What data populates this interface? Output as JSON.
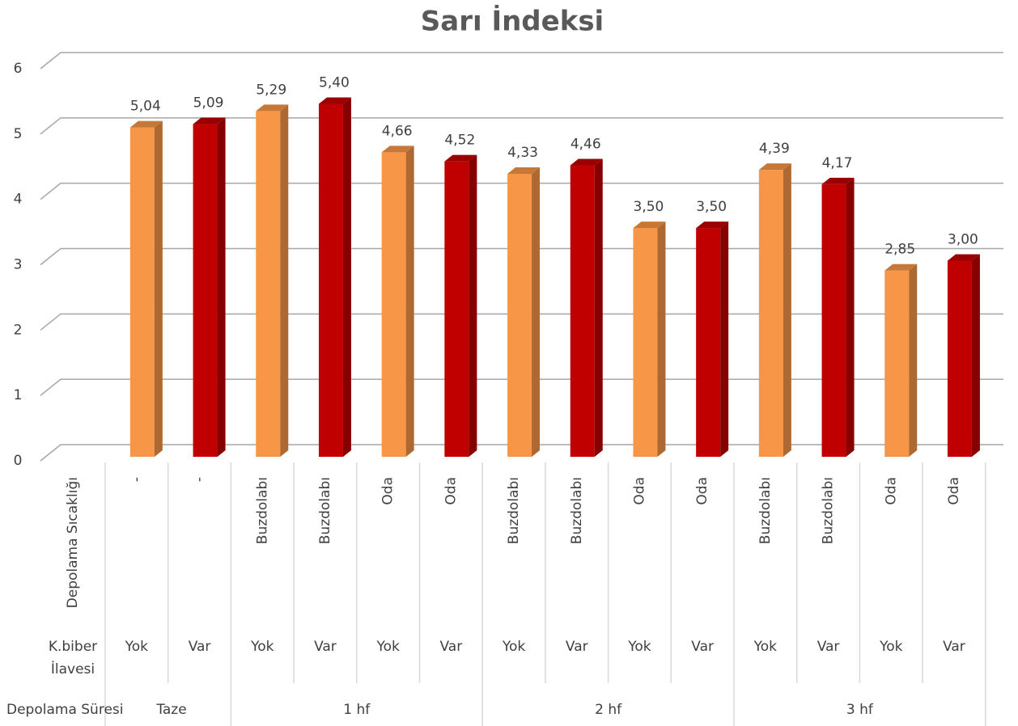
{
  "chart_data": {
    "type": "bar3d",
    "title": "Sarı İndeksi",
    "level_names": [
      "Depolama Sıcaklığı",
      "K.biber İlavesi",
      "Depolama Süresi"
    ],
    "temperature": [
      "-",
      "-",
      "Buzdolabı",
      "Buzdolabı",
      "Oda",
      "Oda",
      "Buzdolabı",
      "Buzdolabı",
      "Oda",
      "Oda",
      "Buzdolabı",
      "Buzdolabı",
      "Oda",
      "Oda"
    ],
    "pepper": [
      "Yok",
      "Var",
      "Yok",
      "Var",
      "Yok",
      "Var",
      "Yok",
      "Var",
      "Yok",
      "Var",
      "Yok",
      "Var",
      "Yok",
      "Var"
    ],
    "duration": [
      "Taze",
      null,
      "1 hf",
      null,
      null,
      null,
      "2 hf",
      null,
      null,
      null,
      "3 hf",
      null,
      null,
      null
    ],
    "values": [
      5.04,
      5.09,
      5.29,
      5.4,
      4.66,
      4.52,
      4.33,
      4.46,
      3.5,
      3.5,
      4.39,
      4.17,
      2.85,
      3.0
    ],
    "value_labels": [
      "5,04",
      "5,09",
      "5,29",
      "5,40",
      "4,66",
      "4,52",
      "4,33",
      "4,46",
      "3,50",
      "3,50",
      "4,39",
      "4,17",
      "2,85",
      "3,00"
    ],
    "colors": {
      "Yok": "#f79646",
      "Var": "#c00000"
    },
    "ylim": [
      0,
      6
    ],
    "yticks": [
      0,
      1,
      2,
      3,
      4,
      5,
      6
    ],
    "grid": true
  }
}
